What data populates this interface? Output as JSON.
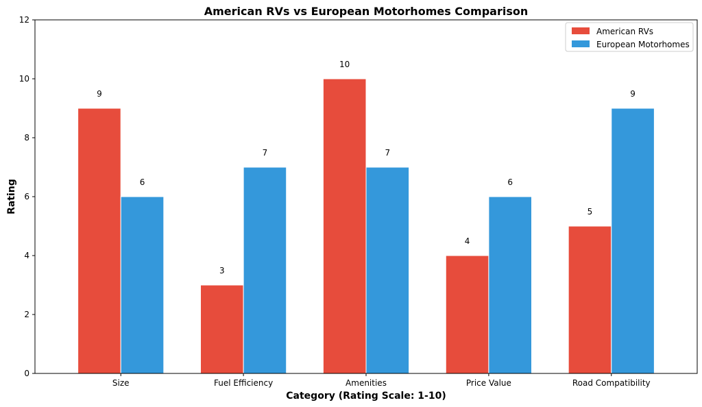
{
  "chart_data": {
    "type": "bar",
    "title": "American RVs vs European Motorhomes Comparison",
    "xlabel": "Category (Rating Scale: 1-10)",
    "ylabel": "Rating",
    "categories": [
      "Size",
      "Fuel Efficiency",
      "Amenities",
      "Price Value",
      "Road Compatibility"
    ],
    "series": [
      {
        "name": "American RVs",
        "values": [
          9,
          3,
          10,
          4,
          5
        ],
        "color": "#e74c3c"
      },
      {
        "name": "European Motorhomes",
        "values": [
          6,
          7,
          7,
          6,
          9
        ],
        "color": "#3498db"
      }
    ],
    "ylim": [
      0,
      12
    ],
    "yticks": [
      0,
      2,
      4,
      6,
      8,
      10,
      12
    ],
    "grid": false,
    "legend_position": "top-right",
    "data_labels": true
  }
}
